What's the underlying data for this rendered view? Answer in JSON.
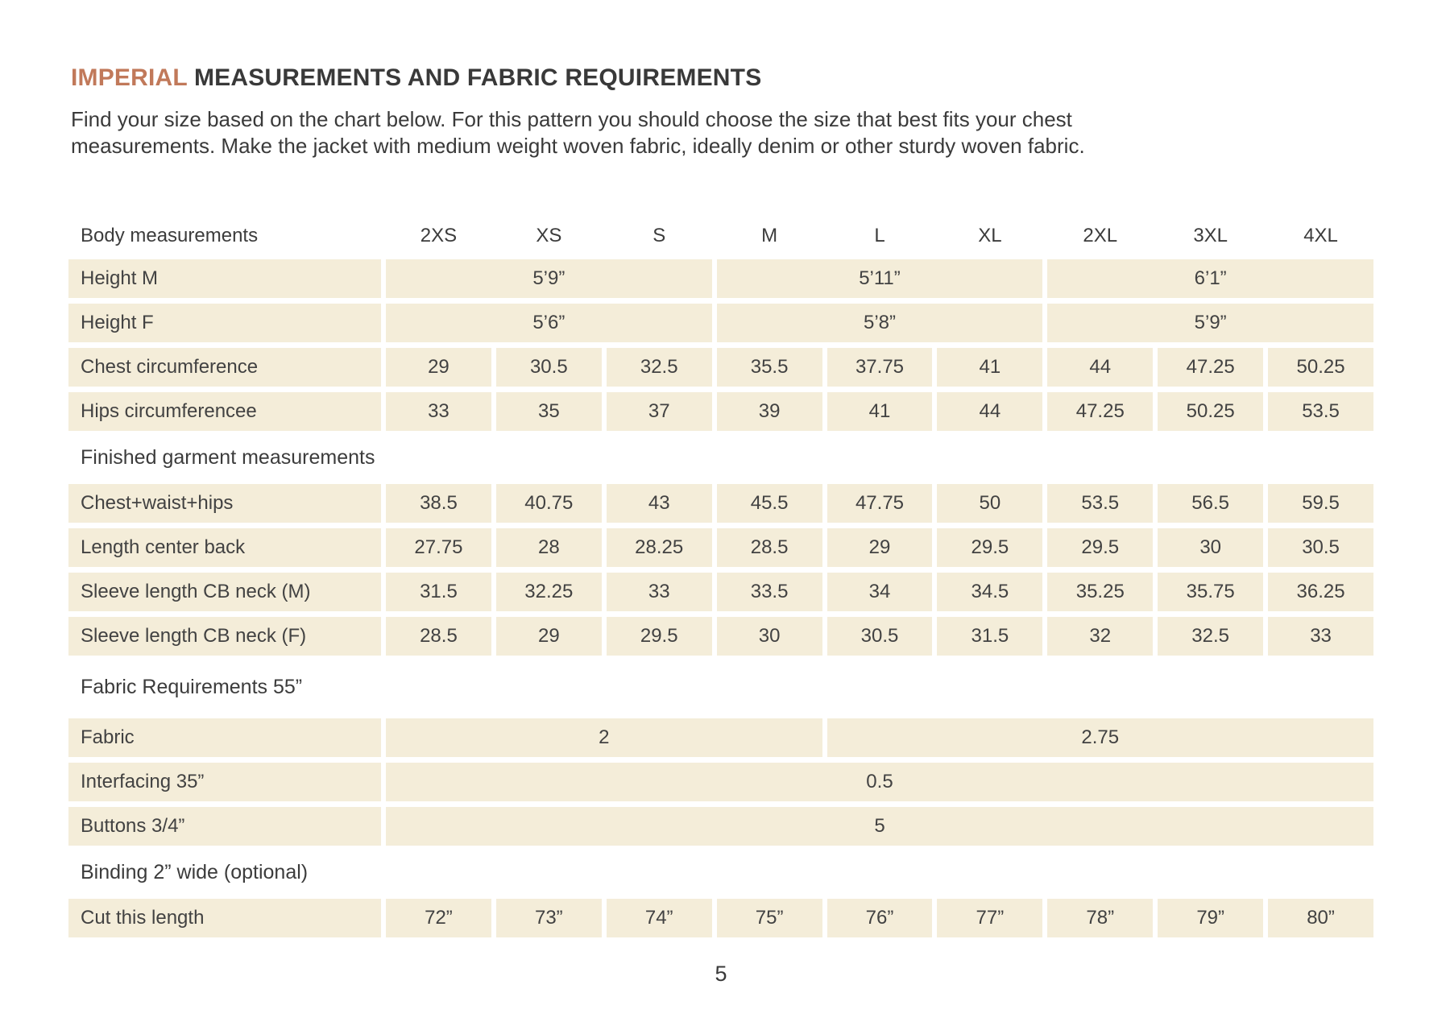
{
  "header": {
    "title_accent": "IMPERIAL",
    "title_rest": "MEASUREMENTS AND FABRIC REQUIREMENTS",
    "intro_line1": "Find your size based on the chart below. For this pattern you should choose the size that best fits your chest",
    "intro_line2": "measurements. Make the jacket with medium weight woven fabric, ideally denim or other sturdy woven fabric."
  },
  "colors": {
    "accent": "#c1795a",
    "band": "#f4edd9",
    "text": "#3e3e3e"
  },
  "table": {
    "corner_label": "Body measurements",
    "sizes": [
      "2XS",
      "XS",
      "S",
      "M",
      "L",
      "XL",
      "2XL",
      "3XL",
      "4XL"
    ],
    "rows": [
      {
        "kind": "grouped",
        "label": "Height M",
        "groups": [
          {
            "value": "5’9”",
            "span": 3
          },
          {
            "value": "5’11”",
            "span": 3
          },
          {
            "value": "6’1”",
            "span": 3
          }
        ]
      },
      {
        "kind": "grouped",
        "label": "Height F",
        "groups": [
          {
            "value": "5’6”",
            "span": 3
          },
          {
            "value": "5’8”",
            "span": 3
          },
          {
            "value": "5’9”",
            "span": 3
          }
        ]
      },
      {
        "kind": "cells",
        "label": "Chest circumference",
        "values": [
          "29",
          "30.5",
          "32.5",
          "35.5",
          "37.75",
          "41",
          "44",
          "47.25",
          "50.25"
        ]
      },
      {
        "kind": "cells",
        "label": "Hips circumferencee",
        "values": [
          "33",
          "35",
          "37",
          "39",
          "41",
          "44",
          "47.25",
          "50.25",
          "53.5"
        ]
      },
      {
        "kind": "section",
        "label": "Finished garment measurements"
      },
      {
        "kind": "cells",
        "label": "Chest+waist+hips",
        "values": [
          "38.5",
          "40.75",
          "43",
          "45.5",
          "47.75",
          "50",
          "53.5",
          "56.5",
          "59.5"
        ]
      },
      {
        "kind": "cells",
        "label": "Length center back",
        "values": [
          "27.75",
          "28",
          "28.25",
          "28.5",
          "29",
          "29.5",
          "29.5",
          "30",
          "30.5"
        ]
      },
      {
        "kind": "cells",
        "label": "Sleeve length CB neck (M)",
        "values": [
          "31.5",
          "32.25",
          "33",
          "33.5",
          "34",
          "34.5",
          "35.25",
          "35.75",
          "36.25"
        ]
      },
      {
        "kind": "cells",
        "label": "Sleeve length CB neck (F)",
        "values": [
          "28.5",
          "29",
          "29.5",
          "30",
          "30.5",
          "31.5",
          "32",
          "32.5",
          "33"
        ]
      },
      {
        "kind": "section",
        "label": "Fabric Requirements 55”"
      },
      {
        "kind": "grouped",
        "label": "Fabric",
        "groups": [
          {
            "value": "2",
            "span": 4
          },
          {
            "value": "2.75",
            "span": 5
          }
        ]
      },
      {
        "kind": "grouped",
        "label": "Interfacing 35”",
        "groups": [
          {
            "value": "0.5",
            "span": 9
          }
        ]
      },
      {
        "kind": "grouped",
        "label": "Buttons 3/4”",
        "groups": [
          {
            "value": "5",
            "span": 9
          }
        ]
      },
      {
        "kind": "section",
        "label": "Binding 2” wide (optional)"
      },
      {
        "kind": "cells",
        "label": "Cut this length",
        "values": [
          "72”",
          "73”",
          "74”",
          "75”",
          "76”",
          "77”",
          "78”",
          "79”",
          "80”"
        ]
      }
    ]
  },
  "footer": {
    "page_number": "5"
  }
}
